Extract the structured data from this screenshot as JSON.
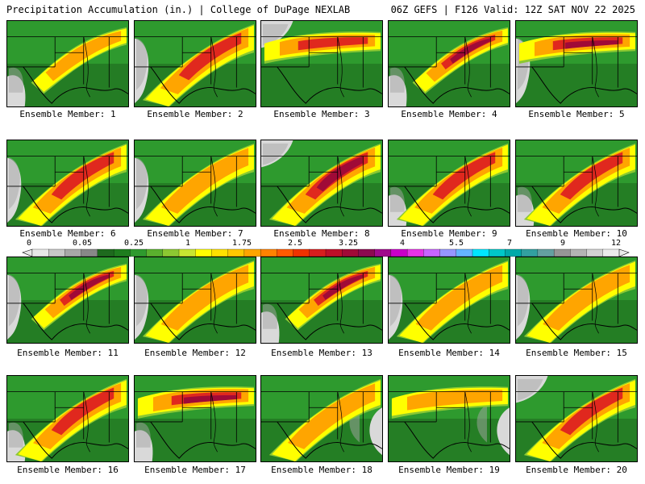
{
  "header": {
    "left": "Precipitation Accumulation (in.) | College of DuPage NEXLAB",
    "right": "06Z GEFS | F126 Valid: 12Z SAT NOV 22 2025"
  },
  "caption_prefix": "Ensemble Member: ",
  "members": [
    {
      "label": "Ensemble Member: 1",
      "wet": 0.45,
      "core": 0.55,
      "band": "ne",
      "gray": "sw"
    },
    {
      "label": "Ensemble Member: 2",
      "wet": 0.6,
      "core": 0.75,
      "band": "diag",
      "gray": "w"
    },
    {
      "label": "Ensemble Member: 3",
      "wet": 0.55,
      "core": 0.65,
      "band": "n",
      "gray": "nw"
    },
    {
      "label": "Ensemble Member: 4",
      "wet": 0.6,
      "core": 0.85,
      "band": "ne",
      "gray": "sw"
    },
    {
      "label": "Ensemble Member: 5",
      "wet": 0.55,
      "core": 0.8,
      "band": "n",
      "gray": "w"
    },
    {
      "label": "Ensemble Member: 6",
      "wet": 0.6,
      "core": 0.75,
      "band": "diag",
      "gray": "w"
    },
    {
      "label": "Ensemble Member: 7",
      "wet": 0.5,
      "core": 0.5,
      "band": "diag",
      "gray": "w"
    },
    {
      "label": "Ensemble Member: 8",
      "wet": 0.65,
      "core": 0.8,
      "band": "diag",
      "gray": "nw"
    },
    {
      "label": "Ensemble Member: 9",
      "wet": 0.6,
      "core": 0.7,
      "band": "diag",
      "gray": "sw"
    },
    {
      "label": "Ensemble Member: 10",
      "wet": 0.55,
      "core": 0.6,
      "band": "diag",
      "gray": "sw"
    },
    {
      "label": "Ensemble Member: 11",
      "wet": 0.5,
      "core": 0.8,
      "band": "ne",
      "gray": "w"
    },
    {
      "label": "Ensemble Member: 12",
      "wet": 0.5,
      "core": 0.55,
      "band": "diag",
      "gray": "w"
    },
    {
      "label": "Ensemble Member: 13",
      "wet": 0.6,
      "core": 0.85,
      "band": "ne",
      "gray": "sw"
    },
    {
      "label": "Ensemble Member: 14",
      "wet": 0.5,
      "core": 0.35,
      "band": "diag",
      "gray": "w"
    },
    {
      "label": "Ensemble Member: 15",
      "wet": 0.55,
      "core": 0.45,
      "band": "diag",
      "gray": "w"
    },
    {
      "label": "Ensemble Member: 16",
      "wet": 0.65,
      "core": 0.7,
      "band": "diag",
      "gray": "sw"
    },
    {
      "label": "Ensemble Member: 17",
      "wet": 0.6,
      "core": 0.9,
      "band": "n",
      "gray": "sw"
    },
    {
      "label": "Ensemble Member: 18",
      "wet": 0.55,
      "core": 0.5,
      "band": "diag",
      "gray": "e"
    },
    {
      "label": "Ensemble Member: 19",
      "wet": 0.6,
      "core": 0.55,
      "band": "n",
      "gray": "e"
    },
    {
      "label": "Ensemble Member: 20",
      "wet": 0.6,
      "core": 0.65,
      "band": "diag",
      "gray": "nw"
    }
  ],
  "colorbar": {
    "tick_labels": [
      "0",
      "0.05",
      "0.25",
      "1",
      "1.75",
      "2.5",
      "3.25",
      "4",
      "5.5",
      "7",
      "9",
      "12"
    ],
    "colors": [
      "#e8e8e8",
      "#c8c8c8",
      "#a8a8a8",
      "#888888",
      "#1e6a1e",
      "#1e7d1e",
      "#2e9a2e",
      "#5ab02e",
      "#8cc832",
      "#c8e632",
      "#ffff00",
      "#ffe100",
      "#ffc800",
      "#ffa500",
      "#ff8200",
      "#ff5a00",
      "#f03200",
      "#d71e1e",
      "#be0f28",
      "#a00a37",
      "#8c0a50",
      "#a00a8c",
      "#c800c8",
      "#e632e6",
      "#c864ff",
      "#9696ff",
      "#64b4ff",
      "#00e6ff",
      "#00c8c8",
      "#00aaaa",
      "#32a0a0",
      "#64a0a0",
      "#969696",
      "#b4b4b4",
      "#d2d2d2",
      "#ebebeb"
    ]
  },
  "palette": {
    "gray_light": "#d9d9d9",
    "gray_mid": "#a6a6a6",
    "green_dark": "#1e6a1e",
    "green": "#2e9a2e",
    "green_light": "#8cc832",
    "yellow": "#ffff00",
    "orange": "#ffa500",
    "red": "#e0281e",
    "dark_red": "#a00a37",
    "border": "#000000"
  }
}
